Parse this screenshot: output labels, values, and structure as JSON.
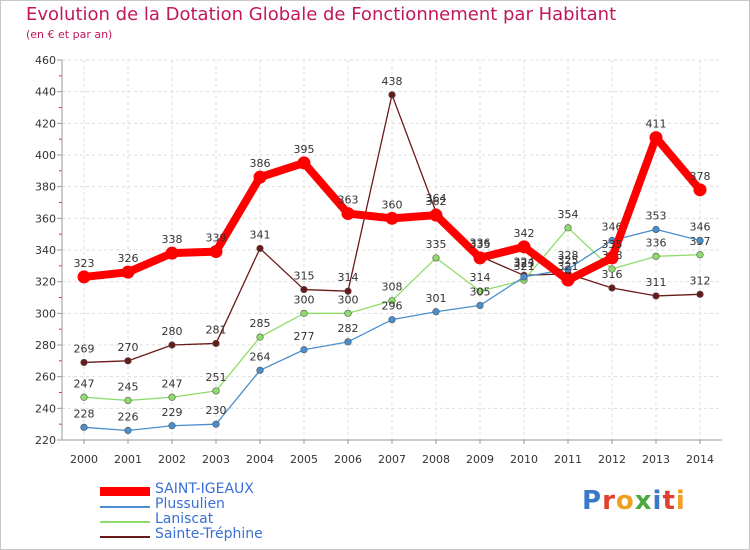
{
  "header": {
    "title": "Evolution de la Dotation Globale de Fonctionnement par Habitant",
    "subtitle": "(en € et par an)"
  },
  "logo": {
    "text": "Proxiti"
  },
  "chart_data": {
    "type": "line",
    "title": "Evolution de la Dotation Globale de Fonctionnement par Habitant",
    "subtitle": "(en € et par an)",
    "x": [
      2000,
      2001,
      2002,
      2003,
      2004,
      2005,
      2006,
      2007,
      2008,
      2009,
      2010,
      2011,
      2012,
      2013,
      2014
    ],
    "ylim": [
      220,
      460
    ],
    "yticks": [
      220,
      240,
      260,
      280,
      300,
      320,
      340,
      360,
      380,
      400,
      420,
      440,
      460
    ],
    "grid": true,
    "legend_position": "bottom-left",
    "series": [
      {
        "name": "Sainte-Tréphine",
        "color": "#6b1a1a",
        "values": [
          269,
          270,
          280,
          281,
          341,
          315,
          314,
          438,
          364,
          336,
          324,
          325,
          316,
          311,
          312
        ]
      },
      {
        "name": "Laniscat",
        "color": "#8fdc6a",
        "values": [
          247,
          245,
          247,
          251,
          285,
          300,
          300,
          308,
          335,
          314,
          321,
          354,
          328,
          336,
          337
        ]
      },
      {
        "name": "Plussulien",
        "color": "#4a8fcc",
        "values": [
          228,
          226,
          229,
          230,
          264,
          277,
          282,
          296,
          301,
          305,
          323,
          328,
          346,
          353,
          346
        ]
      },
      {
        "name": "SAINT-IGEAUX",
        "color": "#ff0000",
        "values": [
          323,
          326,
          338,
          339,
          386,
          395,
          363,
          360,
          362,
          335,
          342,
          321,
          335,
          411,
          378
        ]
      }
    ]
  }
}
